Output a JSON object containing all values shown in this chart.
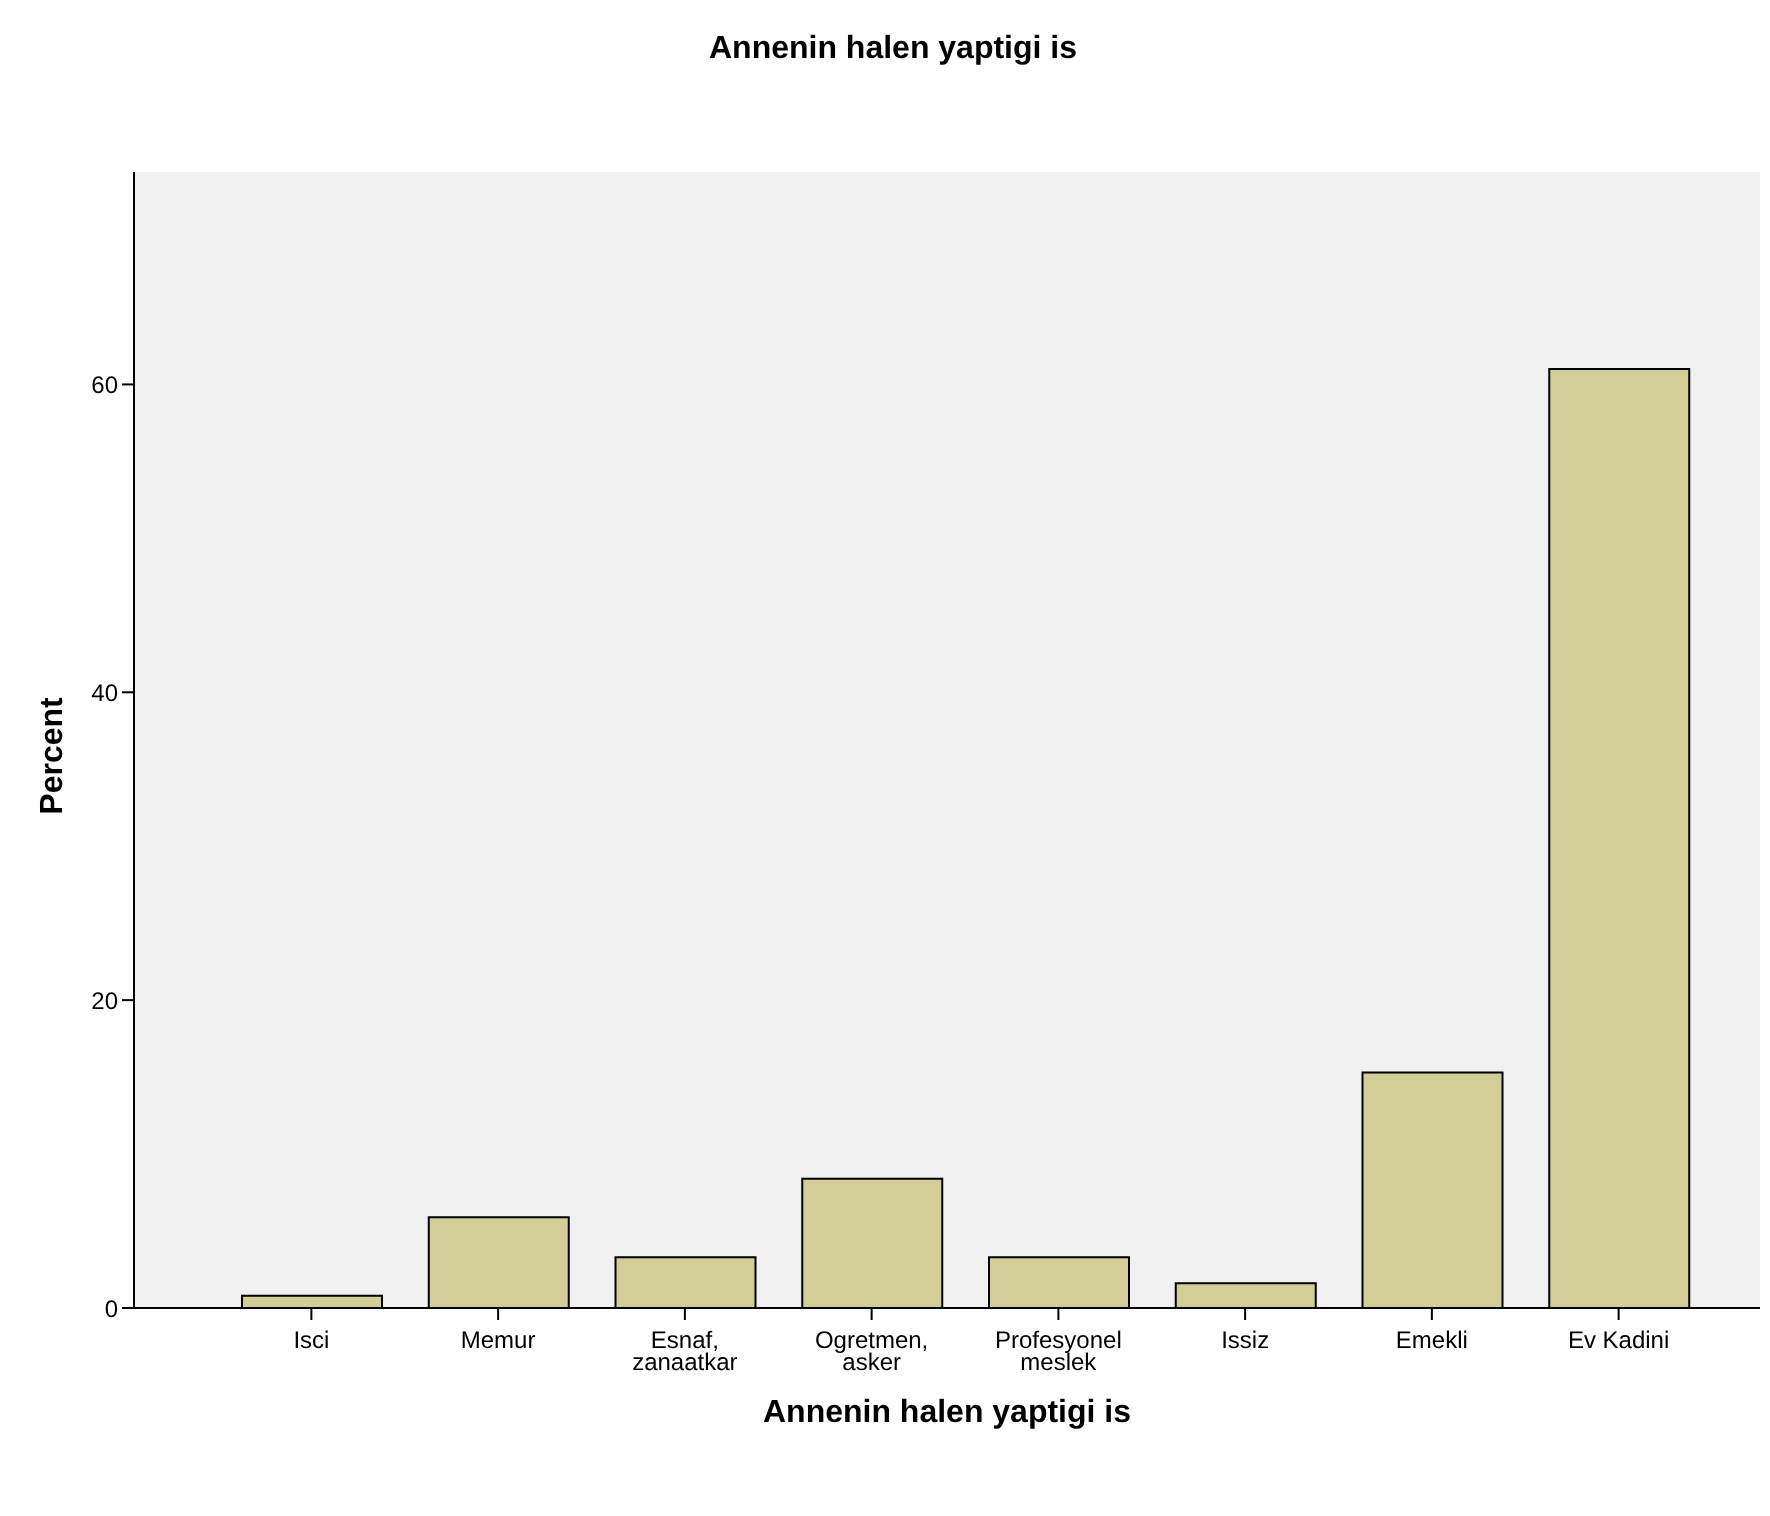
{
  "chart_data": {
    "type": "bar",
    "title": "Annenin halen yaptigi is",
    "xlabel": "Annenin halen yaptigi is",
    "ylabel": "Percent",
    "categories": [
      "Isci",
      "Memur",
      "Esnaf, zanaatkar",
      "Ogretmen, asker",
      "Profesyonel meslek",
      "Issiz",
      "Emekli",
      "Ev Kadini"
    ],
    "values": [
      0.8,
      5.9,
      3.3,
      8.4,
      3.3,
      1.6,
      15.3,
      61.0
    ],
    "color": "#d3ce97",
    "ylim": [
      0,
      73.8
    ],
    "yticks": [
      0,
      20,
      40,
      60
    ],
    "grid": false,
    "legend": false
  }
}
